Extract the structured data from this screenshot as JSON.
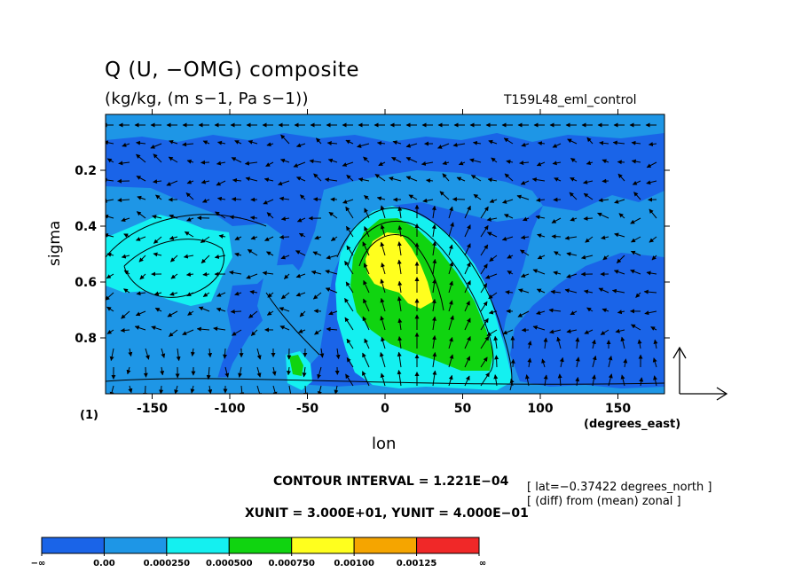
{
  "chart_data": {
    "type": "heatmap",
    "title": "Q (U, −OMG) composite",
    "subtitle": "(kg/kg, (m s−1, Pa s−1))",
    "run_label": "T159L48_eml_control",
    "xlabel": "lon",
    "xunits": "(degrees_east)",
    "ylabel": "sigma",
    "page_label": "(1)",
    "xlim": [
      -180,
      180
    ],
    "ylim": [
      1.0,
      0.0
    ],
    "x_ticks": [
      -150,
      -100,
      -50,
      0,
      50,
      100,
      150
    ],
    "y_ticks": [
      0.2,
      0.4,
      0.6,
      0.8
    ],
    "contour_interval": "CONTOUR INTERVAL = 1.221E−04",
    "vector_units": "XUNIT = 3.000E+01, YUNIT = 4.000E−01",
    "notes": [
      "[ lat=−0.37422 degrees_north ]",
      "[ (diff) from (mean) zonal ]"
    ],
    "colorbar": {
      "labels": [
        "−∞",
        "0.00",
        "0.000250",
        "0.000500",
        "0.000750",
        "0.00100",
        "0.00125",
        "∞"
      ],
      "colors": [
        "#1a64e8",
        "#1e96e6",
        "#14f0f0",
        "#10d410",
        "#ffff1e",
        "#f5a500",
        "#f02828"
      ]
    },
    "regions": [
      {
        "level": "0.000500 to 0.000750",
        "color": "green",
        "lon_range": [
          -20,
          65
        ],
        "sigma_range": [
          0.42,
          0.97
        ]
      },
      {
        "level": "0.000750 to 0.00100",
        "color": "yellow",
        "lon_range": [
          -10,
          28
        ],
        "sigma_range": [
          0.47,
          0.66
        ]
      },
      {
        "level": "0.000250 to 0.000500",
        "color": "cyan",
        "lon_range": [
          -175,
          -100
        ],
        "sigma_range": [
          0.35,
          0.65
        ]
      },
      {
        "level": "0.000250 to 0.000500",
        "color": "cyan",
        "lon_range": [
          -58,
          -45
        ],
        "sigma_range": [
          0.92,
          0.98
        ]
      }
    ]
  }
}
